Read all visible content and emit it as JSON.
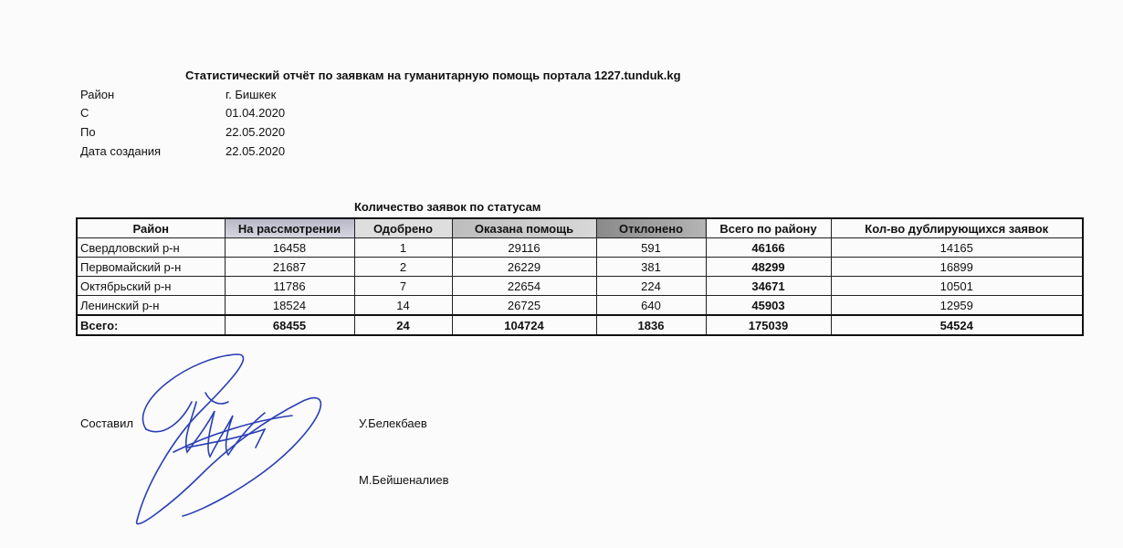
{
  "title": "Статистический отчёт по заявкам на гуманитарную помощь портала 1227.tunduk.kg",
  "meta": [
    {
      "label": "Район",
      "value": "г. Бишкек"
    },
    {
      "label": "С",
      "value": "01.04.2020"
    },
    {
      "label": "По",
      "value": "22.05.2020"
    },
    {
      "label": "Дата создания",
      "value": "22.05.2020"
    }
  ],
  "table": {
    "title": "Количество заявок по статусам",
    "headers": [
      "Район",
      "На рассмотрении",
      "Одобрено",
      "Оказана помощь",
      "Отклонено",
      "Всего по району",
      "Кол-во дублирующихся заявок"
    ],
    "rows": [
      [
        "Свердловский р-н",
        "16458",
        "1",
        "29116",
        "591",
        "46166",
        "14165"
      ],
      [
        "Первомайский р-н",
        "21687",
        "2",
        "26229",
        "381",
        "48299",
        "16899"
      ],
      [
        "Октябрьский р-н",
        "11786",
        "7",
        "22654",
        "224",
        "34671",
        "10501"
      ],
      [
        "Ленинский р-н",
        "18524",
        "14",
        "26725",
        "640",
        "45903",
        "12959"
      ]
    ],
    "total": [
      "Всего:",
      "68455",
      "24",
      "104724",
      "1836",
      "175039",
      "54524"
    ]
  },
  "signatures": {
    "compiled_label": "Составил",
    "names": [
      "У.Белекбаев",
      "М.Бейшеналиев"
    ]
  },
  "colors": {
    "signature_ink": "#2a3fb5"
  }
}
